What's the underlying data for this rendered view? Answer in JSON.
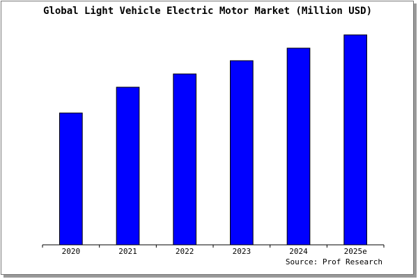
{
  "chart_data": {
    "type": "bar",
    "title": "Global Light Vehicle Electric Motor Market (Million USD)",
    "categories": [
      "2020",
      "2021",
      "2022",
      "2023",
      "2024",
      "2025e"
    ],
    "values": [
      189,
      226,
      245,
      264,
      282,
      301
    ],
    "color": "#0000ff",
    "ylim": [
      0,
      311
    ],
    "source": "Source: Prof Research"
  }
}
